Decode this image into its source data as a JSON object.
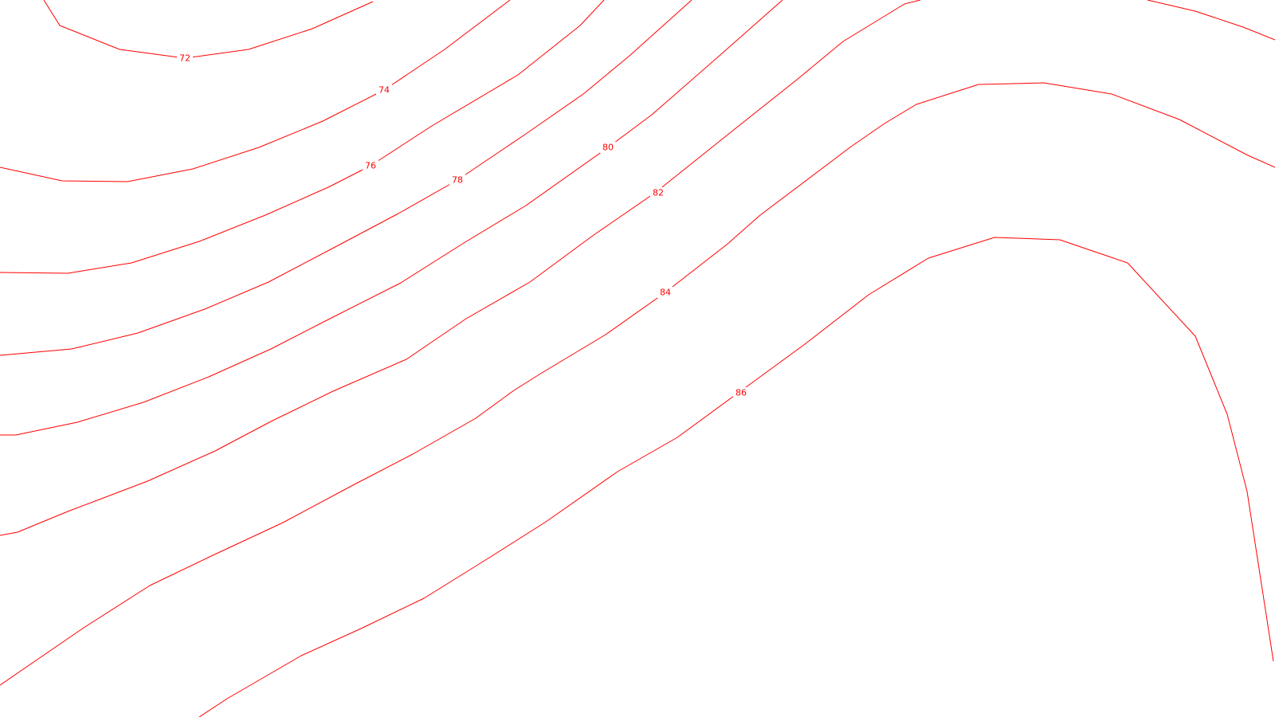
{
  "map": {
    "line_color": "#ff0000",
    "background_color": "#ffffff",
    "contour_labels": [
      "72",
      "74",
      "76",
      "78",
      "80",
      "82",
      "84",
      "86"
    ]
  }
}
